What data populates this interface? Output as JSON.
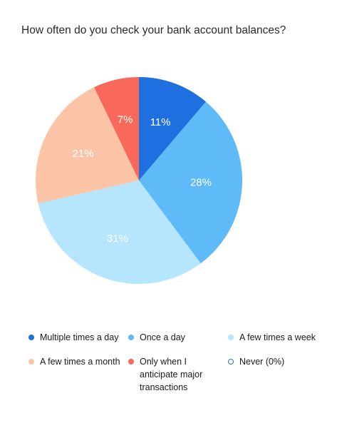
{
  "chart_data": {
    "type": "pie",
    "title": "How often do you check your bank account balances?",
    "categories": [
      "Multiple times a day",
      "Once a day",
      "A few times a week",
      "A few times a month",
      "Only when I anticipate major transactions",
      "Never (0%)"
    ],
    "values": [
      11,
      28,
      31,
      21,
      7,
      0
    ],
    "data_labels": [
      "11%",
      "28%",
      "31%",
      "21%",
      "7%",
      ""
    ],
    "colors": [
      "#1f6fe0",
      "#5fbaf8",
      "#b5e6fd",
      "#fcc4a6",
      "#f8695b",
      "#ffffff"
    ],
    "legend_placement": "bottom"
  }
}
